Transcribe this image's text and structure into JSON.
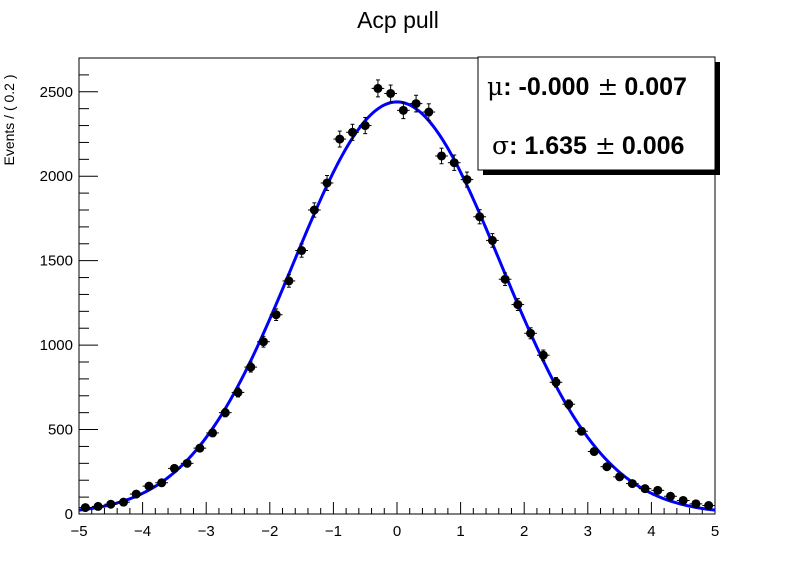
{
  "chart_data": {
    "type": "scatter",
    "title": "Acp pull",
    "xlabel": "",
    "ylabel": "Events / ( 0.2 )",
    "xlim": [
      -5,
      5
    ],
    "ylim": [
      0,
      2700
    ],
    "x_ticks": [
      -5,
      -4,
      -3,
      -2,
      -1,
      0,
      1,
      2,
      3,
      4,
      5
    ],
    "x_tick_labels": [
      "−5",
      "−4",
      "−3",
      "−2",
      "−1",
      "0",
      "1",
      "2",
      "3",
      "4",
      "5"
    ],
    "y_ticks": [
      0,
      500,
      1000,
      1500,
      2000,
      2500
    ],
    "y_tick_labels": [
      "0",
      "500",
      "1000",
      "1500",
      "2000",
      "2500"
    ],
    "grid": false,
    "bin_width": 0.2,
    "series": [
      {
        "kind": "data-points-with-errors",
        "color": "#000000",
        "x": [
          -4.9,
          -4.7,
          -4.5,
          -4.3,
          -4.1,
          -3.9,
          -3.7,
          -3.5,
          -3.3,
          -3.1,
          -2.9,
          -2.7,
          -2.5,
          -2.3,
          -2.1,
          -1.9,
          -1.7,
          -1.5,
          -1.3,
          -1.1,
          -0.9,
          -0.7,
          -0.5,
          -0.3,
          -0.1,
          0.1,
          0.3,
          0.5,
          0.7,
          0.9,
          1.1,
          1.3,
          1.5,
          1.7,
          1.9,
          2.1,
          2.3,
          2.5,
          2.7,
          2.9,
          3.1,
          3.3,
          3.5,
          3.7,
          3.9,
          4.1,
          4.3,
          4.5,
          4.7,
          4.9
        ],
        "y": [
          38,
          45,
          58,
          70,
          118,
          165,
          185,
          270,
          300,
          390,
          480,
          600,
          720,
          870,
          1020,
          1180,
          1380,
          1560,
          1800,
          1960,
          2220,
          2260,
          2300,
          2520,
          2490,
          2390,
          2430,
          2380,
          2120,
          2080,
          1980,
          1760,
          1620,
          1390,
          1240,
          1070,
          940,
          780,
          650,
          490,
          370,
          280,
          220,
          180,
          150,
          140,
          105,
          80,
          60,
          50
        ]
      },
      {
        "kind": "gaussian-fit-curve",
        "color": "#0000ff",
        "mean": 0.0,
        "sigma": 1.635,
        "amplitude": 2440
      }
    ],
    "stats_box": {
      "position": "top-right",
      "mu_label": "μ",
      "mu_value": ": -0.000",
      "mu_err": "0.007",
      "sigma_label": "σ",
      "sigma_value": ": 1.635",
      "sigma_err": "0.006",
      "pm": "±"
    }
  }
}
